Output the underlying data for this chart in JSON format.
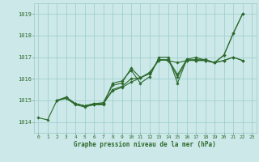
{
  "title": "Graphe pression niveau de la mer (hPa)",
  "bg_color": "#cce8e8",
  "grid_color": "#99cccc",
  "line_color": "#2d6a2d",
  "xlim": [
    -0.5,
    23.5
  ],
  "ylim": [
    1013.5,
    1019.5
  ],
  "yticks": [
    1014,
    1015,
    1016,
    1017,
    1018,
    1019
  ],
  "xticks": [
    0,
    1,
    2,
    3,
    4,
    5,
    6,
    7,
    8,
    9,
    10,
    11,
    12,
    13,
    14,
    15,
    16,
    17,
    18,
    19,
    20,
    21,
    22,
    23
  ],
  "line1_x": [
    0,
    1,
    2,
    3,
    4,
    5,
    6,
    7,
    8,
    9,
    10,
    11,
    12,
    13,
    14,
    15,
    16,
    17,
    18,
    19,
    20,
    21,
    22
  ],
  "line1_y": [
    1014.2,
    1014.1,
    1015.0,
    1015.1,
    1014.8,
    1014.7,
    1014.8,
    1014.8,
    1015.8,
    1015.9,
    1016.4,
    1015.8,
    1016.1,
    1017.0,
    1017.0,
    1015.8,
    1016.9,
    1017.0,
    1016.85,
    1016.75,
    1017.1,
    1018.1,
    1019.0
  ],
  "line2_x": [
    2,
    3,
    4,
    5,
    6,
    7,
    8,
    9,
    10,
    11,
    12,
    13,
    14,
    15,
    16,
    17,
    18,
    19,
    20,
    21,
    22
  ],
  "line2_y": [
    1015.0,
    1015.15,
    1014.85,
    1014.75,
    1014.8,
    1014.85,
    1015.45,
    1015.6,
    1015.85,
    1016.05,
    1016.25,
    1016.9,
    1016.85,
    1016.75,
    1016.85,
    1016.9,
    1016.9,
    1016.75,
    1016.85,
    1017.0,
    1016.85
  ],
  "line3_x": [
    2,
    3,
    4,
    5,
    6,
    7,
    8,
    9,
    10,
    11,
    12,
    13,
    14,
    15,
    16,
    17,
    18,
    19,
    20,
    21,
    22
  ],
  "line3_y": [
    1015.0,
    1015.15,
    1014.85,
    1014.75,
    1014.85,
    1014.9,
    1015.7,
    1015.8,
    1016.5,
    1016.05,
    1016.25,
    1016.9,
    1016.85,
    1016.1,
    1016.85,
    1016.85,
    1016.85,
    1016.75,
    1017.1,
    1018.1,
    1019.0
  ],
  "line4_x": [
    2,
    3,
    4,
    5,
    6,
    7,
    8,
    9,
    10,
    11,
    12,
    13,
    14,
    15,
    16,
    17,
    18,
    19,
    20,
    21,
    22
  ],
  "line4_y": [
    1015.0,
    1015.1,
    1014.85,
    1014.75,
    1014.85,
    1014.85,
    1015.5,
    1015.65,
    1016.0,
    1016.05,
    1016.3,
    1016.85,
    1016.9,
    1016.2,
    1016.9,
    1016.85,
    1016.85,
    1016.75,
    1016.85,
    1017.0,
    1016.85
  ]
}
